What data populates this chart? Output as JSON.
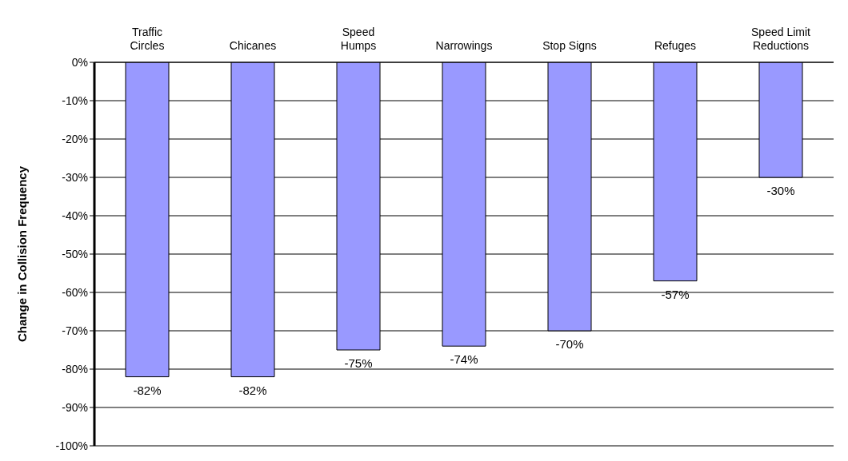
{
  "chart_data": {
    "type": "bar",
    "ylabel": "Change in Collision Frequency",
    "categories": [
      "Traffic Circles",
      "Chicanes",
      "Speed Humps",
      "Narrowings",
      "Stop Signs",
      "Refuges",
      "Speed Limit Reductions"
    ],
    "values": [
      -82,
      -82,
      -75,
      -74,
      -70,
      -57,
      -30
    ],
    "value_labels": [
      "-82%",
      "-82%",
      "-75%",
      "-74%",
      "-70%",
      "-57%",
      "-30%"
    ],
    "color": "#9999ff",
    "ylim": [
      -100,
      0
    ],
    "yticks": [
      {
        "value": 0,
        "label": "0%"
      },
      {
        "value": -10,
        "label": "-10%"
      },
      {
        "value": -20,
        "label": "-20%"
      },
      {
        "value": -30,
        "label": "-30%"
      },
      {
        "value": -40,
        "label": "-40%"
      },
      {
        "value": -50,
        "label": "-50%"
      },
      {
        "value": -60,
        "label": "-60%"
      },
      {
        "value": -70,
        "label": "-70%"
      },
      {
        "value": -80,
        "label": "-80%"
      },
      {
        "value": -90,
        "label": "-90%"
      },
      {
        "value": -100,
        "label": "-100%"
      }
    ],
    "grid": "y",
    "legend": false
  }
}
